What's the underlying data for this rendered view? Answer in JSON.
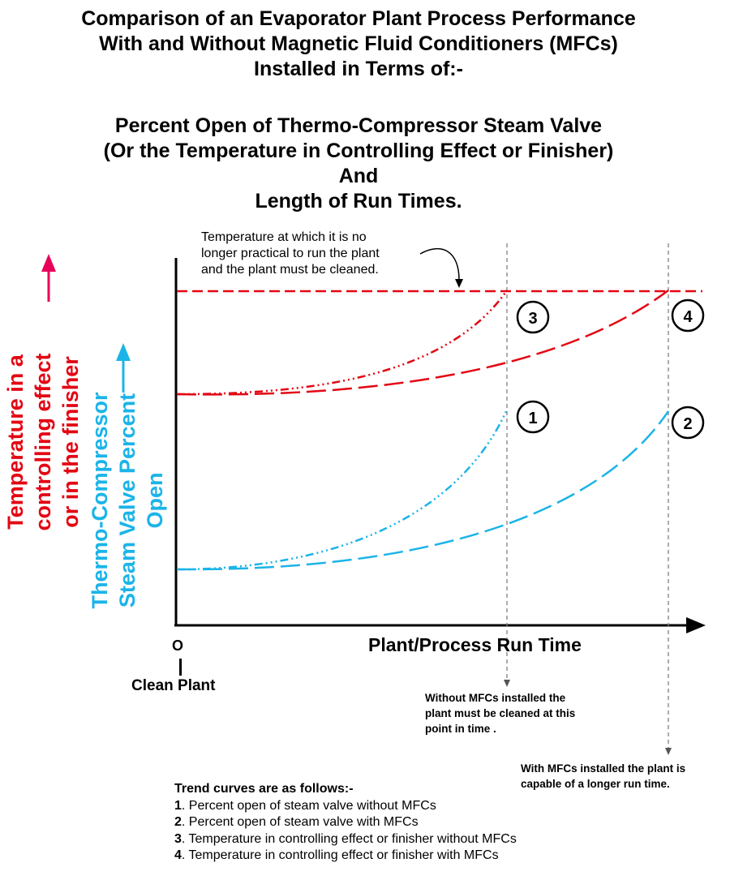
{
  "title_block_1": [
    "Comparison of an Evaporator Plant Process Performance",
    "With and Without Magnetic Fluid Conditioners (MFCs)",
    "Installed in Terms of:-"
  ],
  "title_block_2": [
    "Percent Open of Thermo-Compressor Steam Valve",
    "(Or the Temperature in Controlling Effect or Finisher)",
    "And",
    "Length of Run Times."
  ],
  "y_axis_labels": {
    "temperature": [
      "Temperature in a",
      "controlling effect",
      "or in the finisher"
    ],
    "valve": [
      "Thermo-Compressor",
      "Steam Valve Percent",
      "Open"
    ]
  },
  "x_axis": {
    "label": "Plant/Process Run Time",
    "origin": "O",
    "origin_caption": "Clean Plant"
  },
  "annotations": {
    "cleaning_temperature": [
      "Temperature at which it is no",
      "longer practical to run the plant",
      "and the plant must be cleaned."
    ],
    "without_mfcs": [
      "Without MFCs installed the",
      "plant must be cleaned at this",
      "point in time ."
    ],
    "with_mfcs": [
      "With MFCs installed the plant is",
      "capable of a longer run time."
    ]
  },
  "curve_markers": [
    "1",
    "2",
    "3",
    "4"
  ],
  "legend": {
    "title": "Trend curves are as follows:-",
    "items": [
      {
        "num": "1",
        "text": ". Percent open of steam valve without MFCs"
      },
      {
        "num": "2",
        "text": ". Percent open of steam valve with MFCs"
      },
      {
        "num": "3",
        "text": ". Temperature in controlling effect or finisher without MFCs"
      },
      {
        "num": "4",
        "text": ". Temperature in controlling effect or finisher with MFCs"
      }
    ]
  },
  "colors": {
    "temperature": "#e30613",
    "valve": "#1bb4e8",
    "temperature_arrow": "#e8005a",
    "axis": "#000000",
    "guide": "#808080"
  }
}
